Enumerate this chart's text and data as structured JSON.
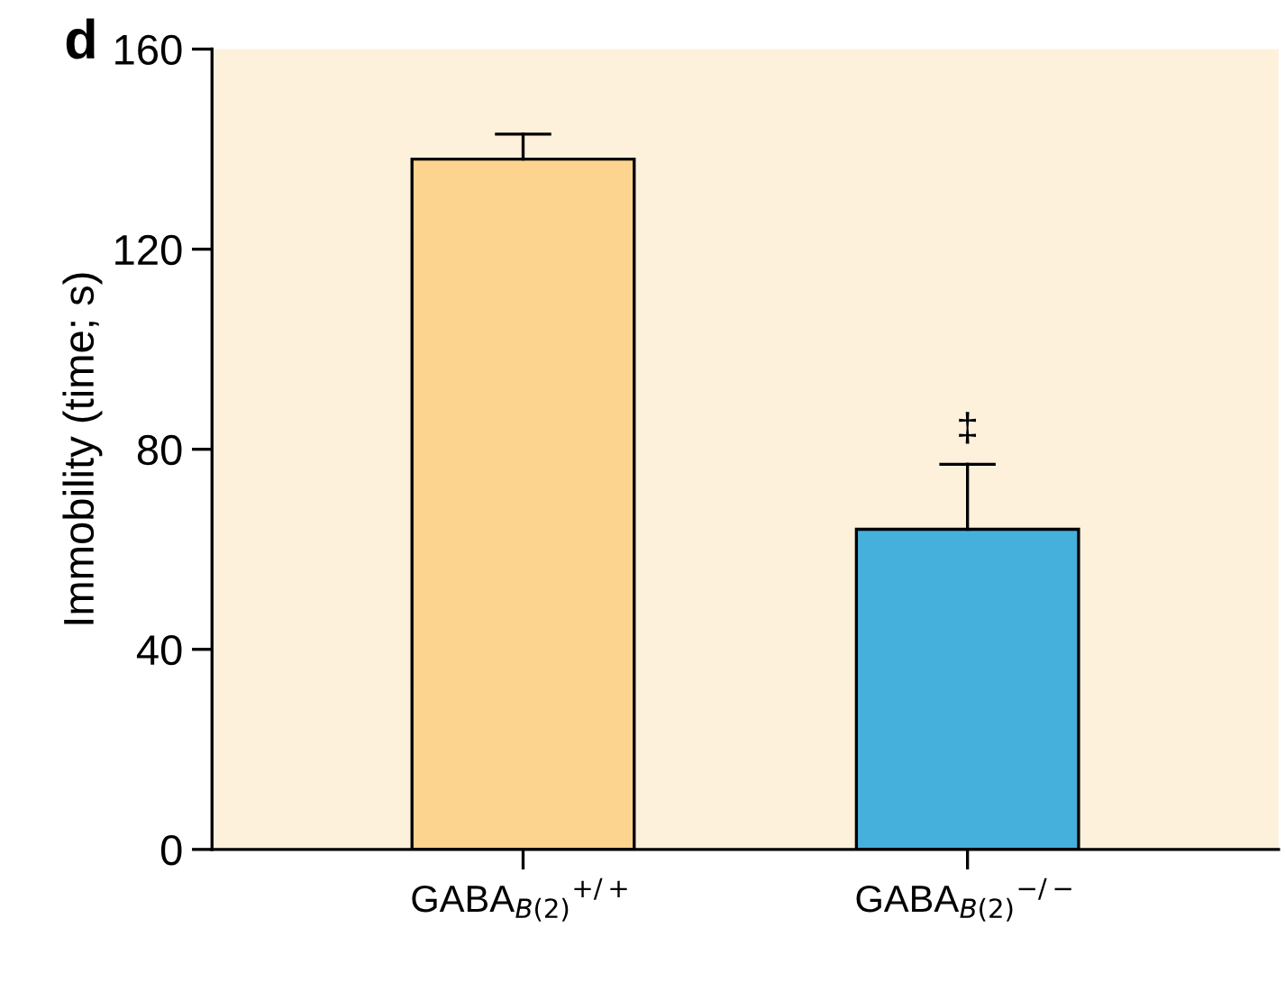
{
  "chart_data": {
    "type": "bar",
    "ylabel": "Immobility (time; s)",
    "categories": [
      "GABA$_{B(2)}$$^{+/+}$",
      "GABA$_{B(2)}$$^{−/−}$"
    ],
    "values": [
      138,
      64
    ],
    "colors": [
      "#fdd48f",
      "#45b0dc"
    ],
    "errors": [
      [
        138,
        143
      ],
      [
        64,
        77
      ]
    ],
    "ylim": [
      0,
      160
    ],
    "yticks": [
      0,
      40,
      80,
      120,
      160
    ],
    "grid": false,
    "legend": false,
    "annotations": [
      "d",
      "‡"
    ]
  }
}
